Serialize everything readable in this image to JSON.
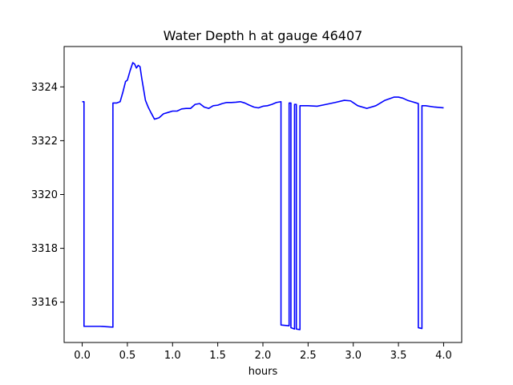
{
  "chart_data": {
    "type": "line",
    "title": "Water Depth h at gauge 46407",
    "xlabel": "hours",
    "ylabel": "",
    "xlim": [
      -0.2,
      4.2
    ],
    "ylim": [
      3314.5,
      3325.5
    ],
    "xticks": [
      0.0,
      0.5,
      1.0,
      1.5,
      2.0,
      2.5,
      3.0,
      3.5,
      4.0
    ],
    "xtick_labels": [
      "0.0",
      "0.5",
      "1.0",
      "1.5",
      "2.0",
      "2.5",
      "3.0",
      "3.5",
      "4.0"
    ],
    "yticks": [
      3316,
      3318,
      3320,
      3322,
      3324
    ],
    "ytick_labels": [
      "3316",
      "3318",
      "3320",
      "3322",
      "3324"
    ],
    "grid": false,
    "series": [
      {
        "color": "#0000ff",
        "x": [
          0.0,
          0.02,
          0.02,
          0.1,
          0.2,
          0.3,
          0.34,
          0.34,
          0.38,
          0.42,
          0.45,
          0.48,
          0.5,
          0.53,
          0.56,
          0.58,
          0.6,
          0.62,
          0.64,
          0.66,
          0.68,
          0.7,
          0.73,
          0.76,
          0.8,
          0.85,
          0.9,
          0.95,
          1.0,
          1.05,
          1.1,
          1.15,
          1.2,
          1.25,
          1.3,
          1.35,
          1.4,
          1.45,
          1.5,
          1.55,
          1.6,
          1.65,
          1.7,
          1.75,
          1.8,
          1.85,
          1.9,
          1.95,
          2.0,
          2.05,
          2.1,
          2.15,
          2.2,
          2.2,
          2.29,
          2.29,
          2.31,
          2.31,
          2.35,
          2.35,
          2.37,
          2.37,
          2.41,
          2.41,
          2.5,
          2.6,
          2.7,
          2.8,
          2.9,
          2.97,
          3.05,
          3.15,
          3.25,
          3.35,
          3.45,
          3.5,
          3.55,
          3.6,
          3.65,
          3.7,
          3.72,
          3.72,
          3.76,
          3.76,
          3.8,
          3.9,
          4.0
        ],
        "y": [
          3323.45,
          3323.45,
          3315.1,
          3315.1,
          3315.1,
          3315.08,
          3315.07,
          3323.4,
          3323.4,
          3323.45,
          3323.8,
          3324.2,
          3324.25,
          3324.6,
          3324.9,
          3324.85,
          3324.7,
          3324.8,
          3324.75,
          3324.3,
          3323.9,
          3323.5,
          3323.25,
          3323.05,
          3322.8,
          3322.85,
          3323.0,
          3323.05,
          3323.1,
          3323.1,
          3323.18,
          3323.2,
          3323.2,
          3323.35,
          3323.38,
          3323.25,
          3323.2,
          3323.3,
          3323.32,
          3323.38,
          3323.42,
          3323.42,
          3323.43,
          3323.45,
          3323.4,
          3323.32,
          3323.25,
          3323.22,
          3323.28,
          3323.3,
          3323.35,
          3323.42,
          3323.45,
          3315.15,
          3315.12,
          3323.4,
          3323.4,
          3315.05,
          3315.0,
          3323.35,
          3323.35,
          3315.0,
          3314.98,
          3323.3,
          3323.3,
          3323.28,
          3323.35,
          3323.42,
          3323.5,
          3323.48,
          3323.3,
          3323.2,
          3323.3,
          3323.5,
          3323.62,
          3323.62,
          3323.58,
          3323.5,
          3323.45,
          3323.4,
          3323.38,
          3315.05,
          3315.02,
          3323.3,
          3323.3,
          3323.25,
          3323.22
        ]
      }
    ]
  }
}
